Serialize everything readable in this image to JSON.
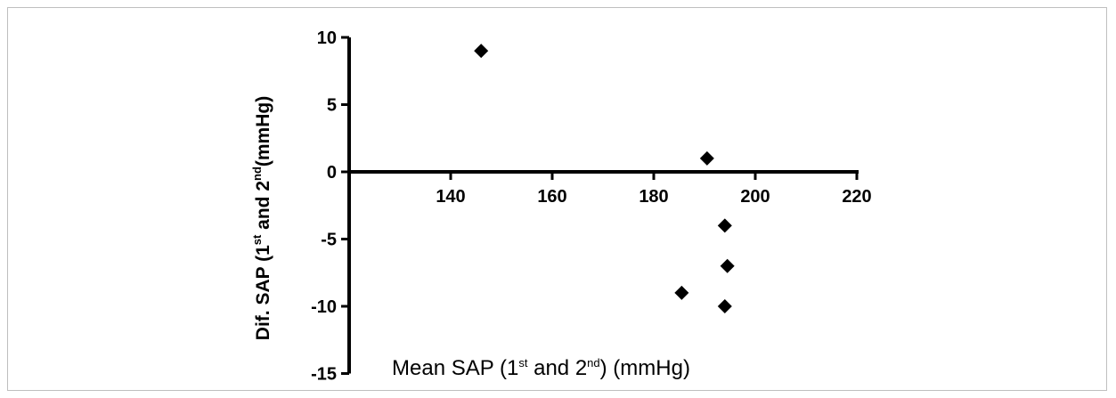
{
  "chart_data": {
    "type": "scatter",
    "title": "",
    "xlabel": {
      "parts": [
        "Mean SAP (1",
        "st",
        " and  2",
        "nd",
        ") (mmHg)"
      ]
    },
    "ylabel": {
      "parts": [
        "Dif. SAP (1",
        "st",
        " and 2",
        "nd",
        "(mmHg)"
      ]
    },
    "xlim": [
      120,
      220
    ],
    "ylim": [
      -15,
      10
    ],
    "xticks": [
      140,
      160,
      180,
      200,
      220
    ],
    "yticks": [
      10,
      5,
      0,
      -5,
      -10,
      -15
    ],
    "xtick_labels": [
      "140",
      "160",
      "180",
      "200",
      "220"
    ],
    "ytick_labels": [
      "10",
      "5",
      "0",
      "-5",
      "-10",
      "-15"
    ],
    "grid": false,
    "marker": "diamond",
    "marker_color": "#000000",
    "points": [
      {
        "x": 146,
        "y": 9
      },
      {
        "x": 190.5,
        "y": 1
      },
      {
        "x": 194,
        "y": -4
      },
      {
        "x": 194.5,
        "y": -7
      },
      {
        "x": 185.5,
        "y": -9
      },
      {
        "x": 194,
        "y": -10
      }
    ]
  }
}
